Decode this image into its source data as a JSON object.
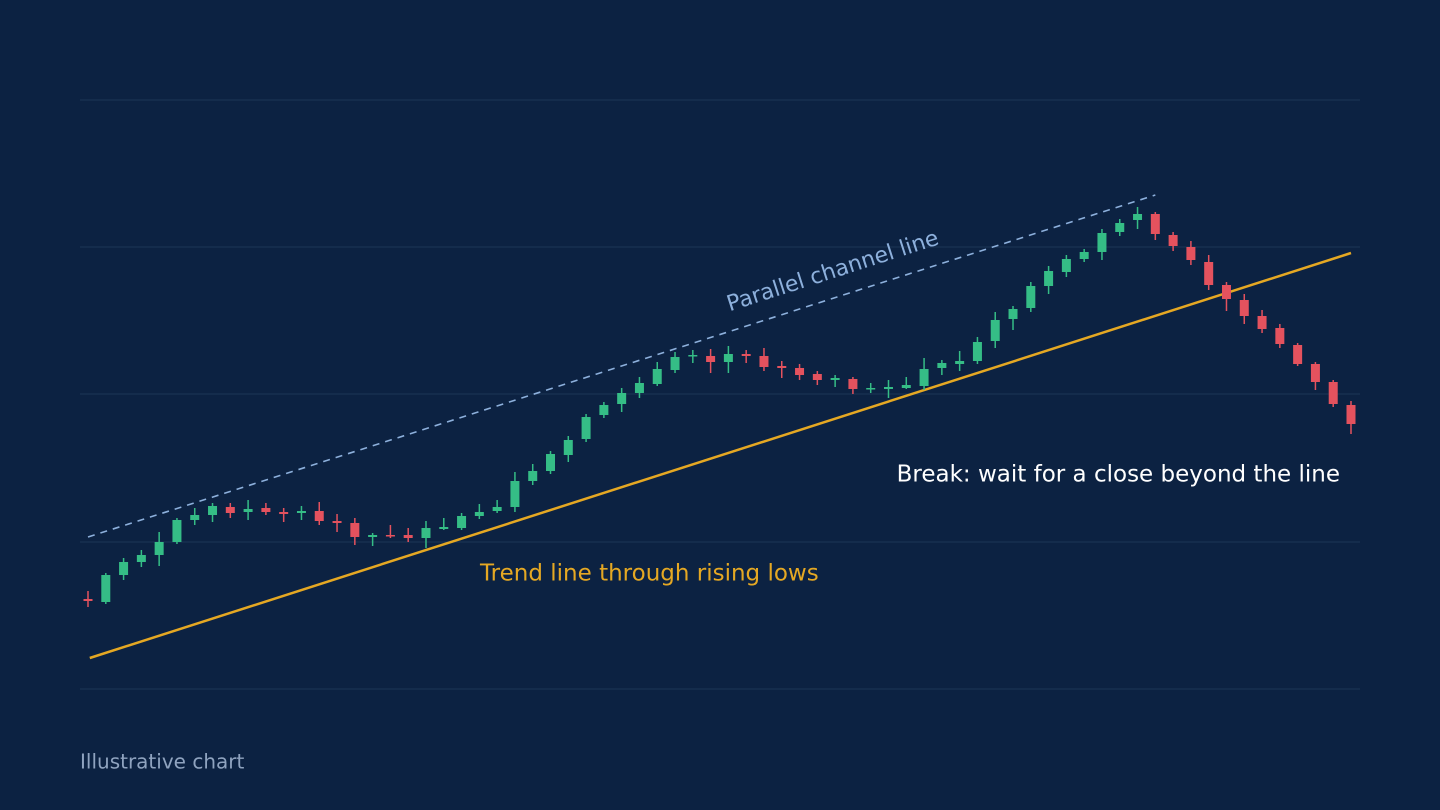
{
  "chart_data": {
    "type": "candlestick",
    "open": [
      90,
      87,
      114,
      127,
      134,
      147,
      169,
      174,
      182,
      177,
      181,
      177,
      176,
      178,
      168,
      166,
      152,
      154,
      154,
      151,
      160,
      161,
      173,
      178,
      182,
      208,
      218,
      234,
      250,
      274,
      285,
      296,
      305,
      319,
      333,
      333,
      327,
      335,
      333,
      323,
      321,
      315,
      309,
      310,
      300,
      300,
      301,
      303,
      321,
      325,
      328,
      348,
      370,
      381,
      403,
      417,
      430,
      437,
      457,
      469,
      475,
      454,
      442,
      427,
      404,
      389,
      373,
      361,
      344,
      325,
      307,
      284
    ],
    "high": [
      98,
      116,
      131,
      139,
      157,
      171,
      181,
      186,
      186,
      189,
      186,
      181,
      183,
      187,
      175,
      171,
      156,
      164,
      161,
      168,
      171,
      176,
      185,
      189,
      217,
      225,
      238,
      253,
      275,
      287,
      301,
      312,
      327,
      337,
      339,
      340,
      343,
      339,
      341,
      328,
      325,
      318,
      314,
      312,
      306,
      309,
      312,
      331,
      329,
      338,
      352,
      377,
      383,
      407,
      423,
      434,
      440,
      460,
      470,
      482,
      477,
      457,
      448,
      434,
      407,
      395,
      379,
      365,
      346,
      327,
      309,
      288
    ],
    "low": [
      82,
      85,
      109,
      122,
      123,
      145,
      164,
      167,
      171,
      169,
      174,
      167,
      169,
      164,
      157,
      144,
      143,
      151,
      147,
      141,
      159,
      159,
      170,
      176,
      177,
      204,
      215,
      227,
      247,
      271,
      277,
      291,
      303,
      316,
      326,
      316,
      316,
      326,
      318,
      311,
      309,
      304,
      302,
      295,
      296,
      291,
      300,
      299,
      314,
      318,
      325,
      341,
      359,
      377,
      395,
      412,
      427,
      429,
      453,
      460,
      449,
      438,
      424,
      399,
      378,
      365,
      356,
      341,
      323,
      299,
      282,
      255
    ],
    "close": [
      88,
      114,
      127,
      134,
      147,
      169,
      174,
      183,
      176,
      180,
      177,
      175,
      178,
      168,
      166,
      152,
      154,
      153,
      151,
      161,
      162,
      173,
      177,
      182,
      208,
      218,
      235,
      249,
      272,
      284,
      296,
      306,
      320,
      332,
      334,
      327,
      335,
      333,
      322,
      321,
      314,
      309,
      311,
      300,
      301,
      302,
      304,
      320,
      326,
      328,
      347,
      369,
      380,
      403,
      418,
      430,
      437,
      456,
      466,
      475,
      455,
      443,
      429,
      404,
      390,
      373,
      360,
      345,
      325,
      307,
      285,
      265
    ],
    "up_color": "#35bd86",
    "down_color": "#e4525e",
    "xlim": [
      0,
      71
    ],
    "ylim": [
      0,
      589
    ],
    "yticks": [
      0,
      147,
      295,
      442,
      589
    ],
    "grid": true,
    "trend_line": {
      "label": "Trend line through rising lows",
      "color": "#e5a823",
      "x": [
        0.1,
        71
      ],
      "y": [
        31,
        436
      ]
    },
    "channel_line": {
      "label": "Parallel channel line",
      "color": "#8db0dc",
      "dashed": true,
      "x": [
        0,
        60
      ],
      "y": [
        152,
        494
      ]
    },
    "annotation": "Break: wait for a close beyond the line"
  },
  "footer": "Illustrative chart"
}
